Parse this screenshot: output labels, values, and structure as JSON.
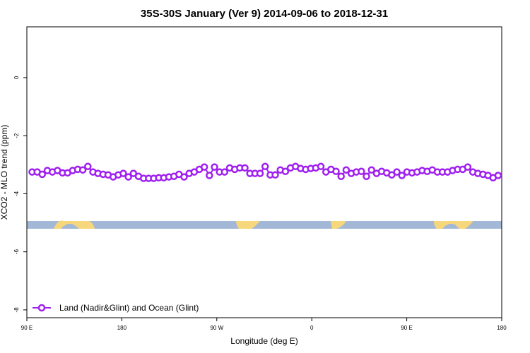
{
  "chart_data": {
    "type": "line",
    "title": "35S-30S January (Ver 9)   2014-09-06 to 2018-12-31",
    "x_label": "Longitude (deg E)",
    "y_label": "XCO2 - MLO trend (ppm)",
    "x": [
      95,
      99.8,
      104.6,
      109.4,
      114.2,
      119,
      123.8,
      128.6,
      133.4,
      138.2,
      143,
      147.8,
      152.6,
      157.4,
      162.2,
      167,
      171.8,
      176.6,
      181.4,
      186.2,
      191,
      195.8,
      200.6,
      205.4,
      210.2,
      215,
      219.8,
      224.6,
      229.4,
      234.2,
      239,
      243.8,
      248.6,
      253.4,
      258.2,
      263,
      267.8,
      272.6,
      277.4,
      282.2,
      287,
      291.8,
      296.6,
      301.4,
      306.2,
      311,
      315.8,
      320.6,
      325.4,
      330.2,
      335,
      339.8,
      344.6,
      349.4,
      354.2,
      359,
      363.8,
      368.6,
      373.4,
      378.2,
      383,
      387.8,
      392.6,
      397.4,
      402.2,
      407,
      411.8,
      416.6,
      421.4,
      426.2,
      431,
      435.8,
      440.6,
      445.4,
      450.2,
      455,
      459.8,
      464.6,
      469.4,
      474.2,
      479,
      483.8,
      488.6,
      493.4,
      498.2,
      503,
      507.8,
      512.6,
      517.4,
      522.2,
      527,
      531.8,
      536.6
    ],
    "series": [
      {
        "name": "Land (Nadir&Glint) and Ocean (Glint)",
        "color": "#a020f0",
        "values": [
          -3.25,
          -3.25,
          -3.33,
          -3.2,
          -3.25,
          -3.2,
          -3.28,
          -3.28,
          -3.2,
          -3.16,
          -3.18,
          -3.06,
          -3.25,
          -3.3,
          -3.33,
          -3.35,
          -3.42,
          -3.35,
          -3.3,
          -3.42,
          -3.3,
          -3.4,
          -3.47,
          -3.47,
          -3.47,
          -3.45,
          -3.45,
          -3.42,
          -3.4,
          -3.33,
          -3.42,
          -3.3,
          -3.25,
          -3.16,
          -3.08,
          -3.37,
          -3.08,
          -3.25,
          -3.25,
          -3.11,
          -3.16,
          -3.11,
          -3.11,
          -3.3,
          -3.3,
          -3.3,
          -3.06,
          -3.35,
          -3.35,
          -3.18,
          -3.23,
          -3.11,
          -3.06,
          -3.13,
          -3.16,
          -3.13,
          -3.11,
          -3.06,
          -3.25,
          -3.16,
          -3.23,
          -3.4,
          -3.18,
          -3.3,
          -3.25,
          -3.23,
          -3.4,
          -3.18,
          -3.3,
          -3.23,
          -3.28,
          -3.35,
          -3.25,
          -3.37,
          -3.25,
          -3.28,
          -3.25,
          -3.2,
          -3.23,
          -3.18,
          -3.25,
          -3.25,
          -3.25,
          -3.2,
          -3.16,
          -3.16,
          -3.08,
          -3.25,
          -3.3,
          -3.33,
          -3.37,
          -3.45,
          -3.37
        ]
      }
    ],
    "xlim": [
      90,
      540
    ],
    "xticks": [
      {
        "value": 90,
        "label": "90 E"
      },
      180,
      {
        "value": 270,
        "label": "90 W"
      },
      {
        "value": 360,
        "label": "0"
      },
      {
        "value": 450,
        "label": "90 E"
      },
      {
        "value": 540,
        "label": "180"
      }
    ],
    "ylim": [
      -8.27,
      1.75
    ],
    "yticks": [
      0,
      -2,
      -4,
      -6,
      -8
    ],
    "legend": "bottom-left"
  }
}
